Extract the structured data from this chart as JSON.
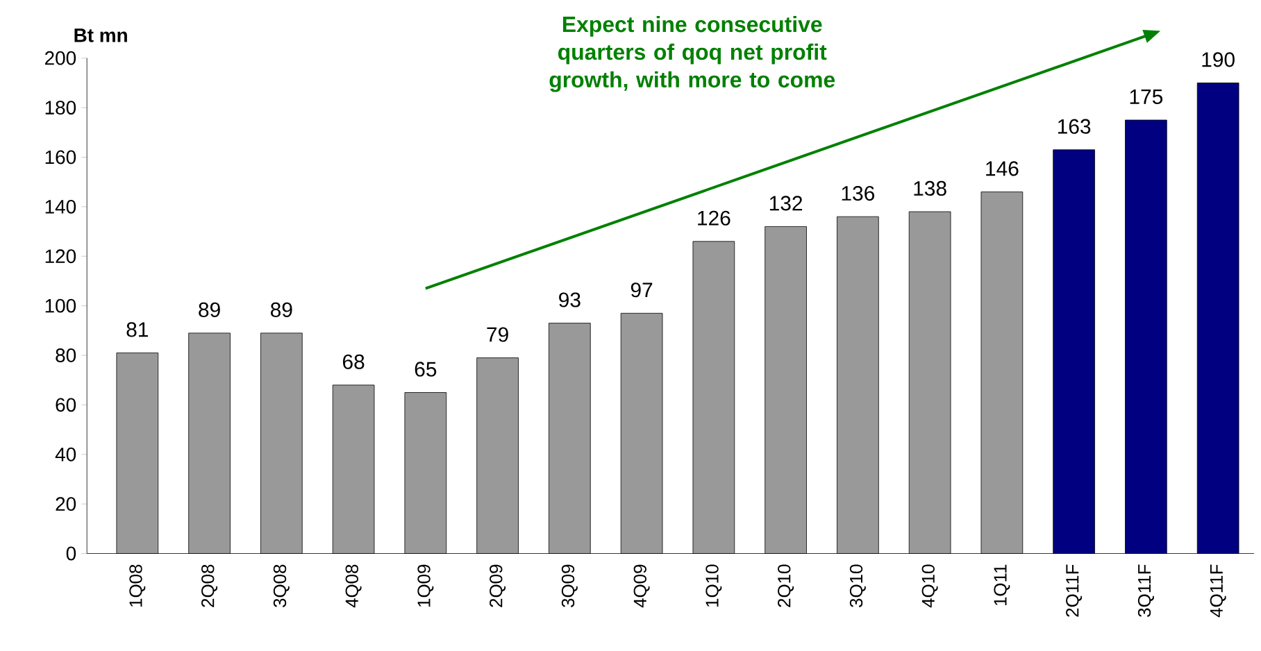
{
  "chart_data": {
    "type": "bar",
    "ylabel": "Bt mn",
    "annotations": [
      "Expect nine consecutive quarters of qoq net profit growth, with more to come"
    ],
    "categories": [
      "1Q08",
      "2Q08",
      "3Q08",
      "4Q08",
      "1Q09",
      "2Q09",
      "3Q09",
      "4Q09",
      "1Q10",
      "2Q10",
      "3Q10",
      "4Q10",
      "1Q11",
      "2Q11F",
      "3Q11F",
      "4Q11F"
    ],
    "values": [
      81,
      89,
      89,
      68,
      65,
      79,
      93,
      97,
      126,
      132,
      136,
      138,
      146,
      163,
      175,
      190
    ],
    "colors": [
      "#999999",
      "#999999",
      "#999999",
      "#999999",
      "#999999",
      "#999999",
      "#999999",
      "#999999",
      "#999999",
      "#999999",
      "#999999",
      "#999999",
      "#999999",
      "#000080",
      "#000080",
      "#000080"
    ],
    "ylim": [
      0,
      200
    ],
    "yticks": [
      0,
      20,
      40,
      60,
      80,
      100,
      120,
      140,
      160,
      180,
      200
    ],
    "grid": false,
    "data_labels": true
  }
}
